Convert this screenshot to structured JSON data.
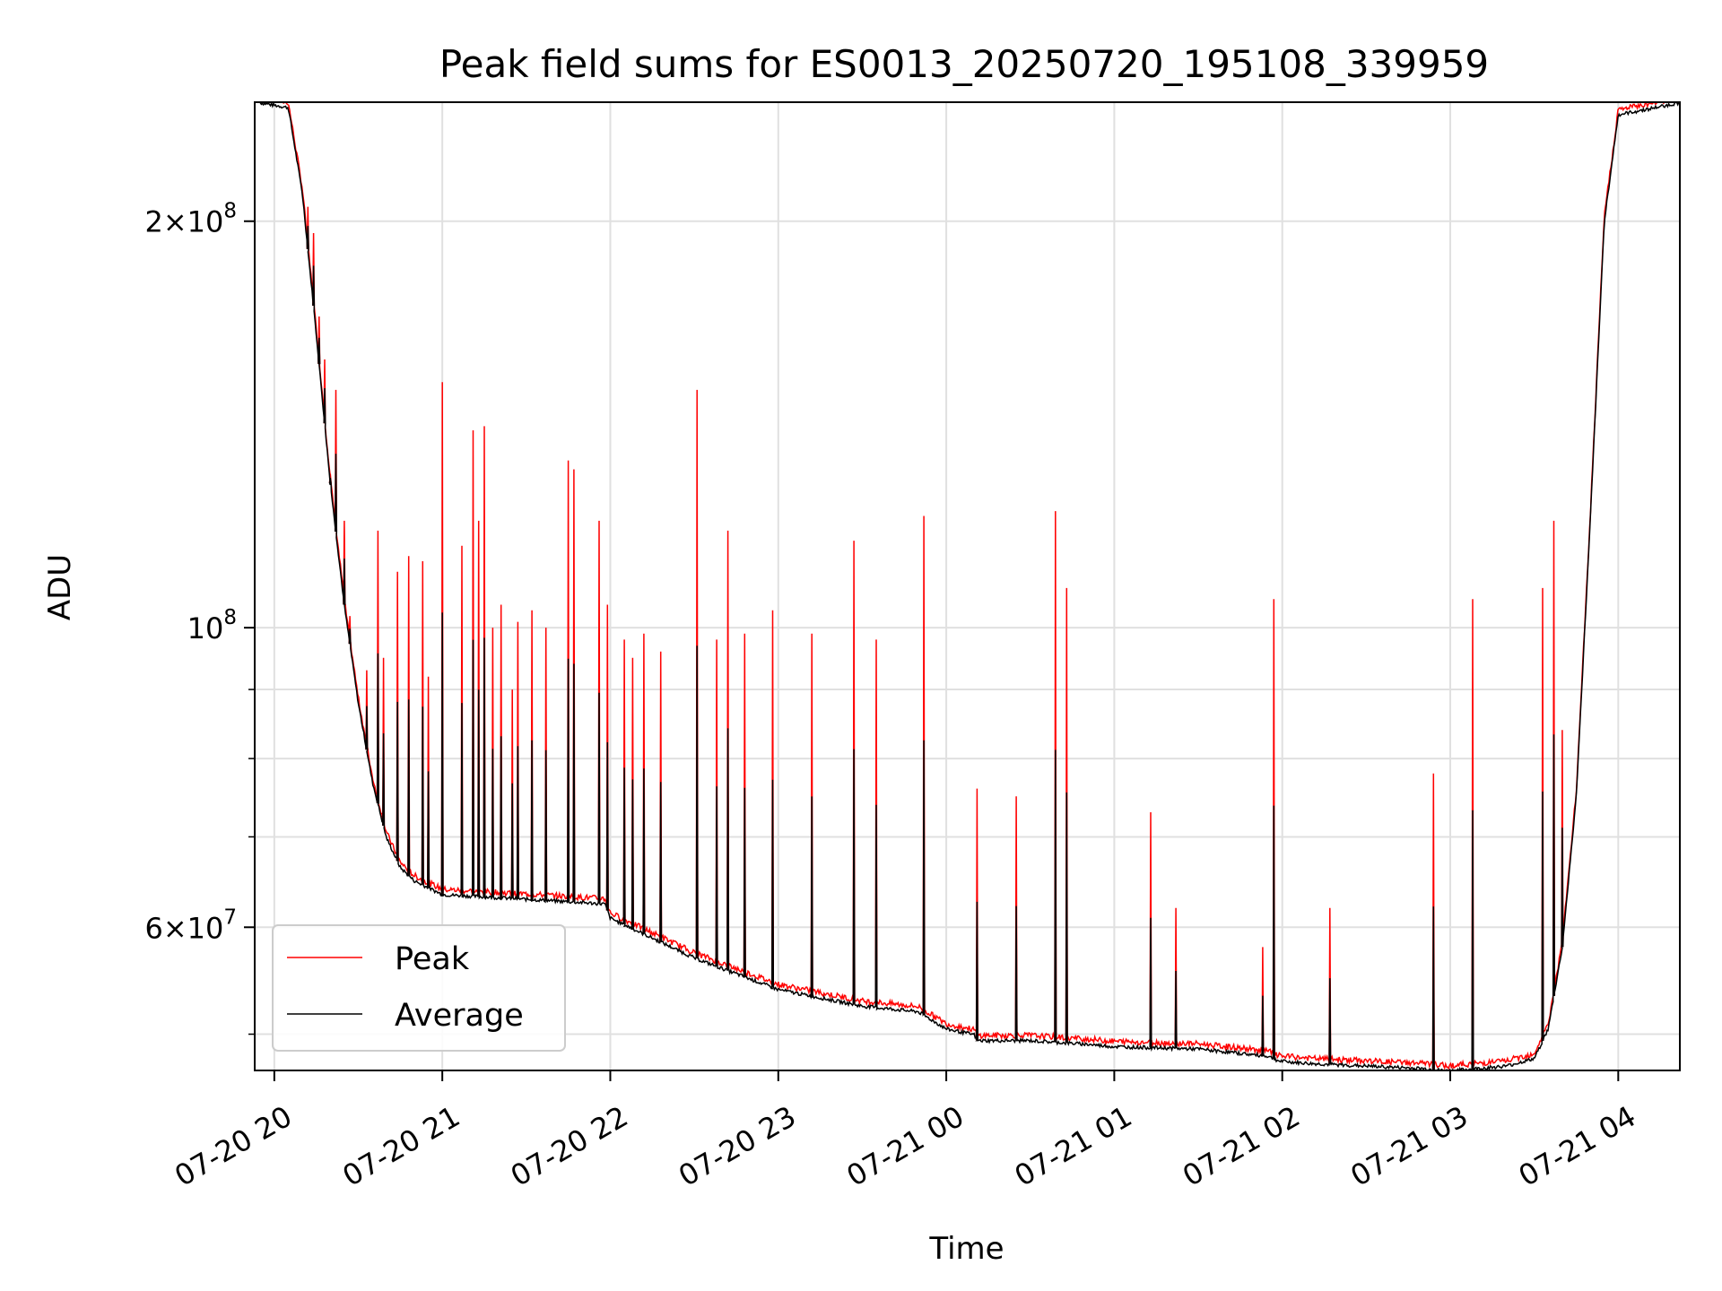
{
  "chart_data": {
    "type": "line",
    "title": "Peak field sums for ES0013_20250720_195108_339959",
    "xlabel": "Time",
    "ylabel": "ADU",
    "y_scale": "log",
    "ylim": [
      47000000,
      245000000
    ],
    "xlim": [
      "07-20 19:53",
      "07-21 04:22"
    ],
    "grid": true,
    "legend_position": "lower-left",
    "x_ticks": [
      "07-20 20",
      "07-20 21",
      "07-20 22",
      "07-20 23",
      "07-21 00",
      "07-21 01",
      "07-21 02",
      "07-21 03",
      "07-21 04"
    ],
    "y_tick_labels": [
      {
        "value": 200000000,
        "mantissa": "2",
        "exponent": "8"
      },
      {
        "value": 100000000,
        "mantissa": "",
        "exponent": "8"
      },
      {
        "value": 60000000,
        "mantissa": "6",
        "exponent": "7"
      }
    ],
    "y_minor_ticks": [
      70000000,
      80000000,
      90000000
    ],
    "baseline": {
      "x": [
        "07-20 19:55",
        "07-20 20:05",
        "07-20 20:10",
        "07-20 20:15",
        "07-20 20:20",
        "07-20 20:25",
        "07-20 20:30",
        "07-20 20:35",
        "07-20 20:40",
        "07-20 20:45",
        "07-20 20:50",
        "07-20 21:00",
        "07-20 21:30",
        "07-20 21:58",
        "07-20 22:00",
        "07-20 22:30",
        "07-20 23:00",
        "07-20 23:30",
        "07-20 23:50",
        "07-21 00:00",
        "07-21 00:10",
        "07-21 00:11",
        "07-21 00:30",
        "07-21 00:50",
        "07-21 01:00",
        "07-21 01:30",
        "07-21 01:55",
        "07-21 01:59",
        "07-21 02:10",
        "07-21 02:30",
        "07-21 02:50",
        "07-21 02:59",
        "07-21 03:10",
        "07-21 03:20",
        "07-21 03:30",
        "07-21 03:35",
        "07-21 03:40",
        "07-21 03:45",
        "07-21 03:50",
        "07-21 03:55",
        "07-21 04:00",
        "07-21 04:22"
      ],
      "y": [
        245000000,
        243000000,
        210000000,
        165000000,
        128000000,
        104000000,
        88000000,
        77000000,
        70000000,
        66500000,
        65000000,
        63500000,
        63000000,
        62500000,
        61000000,
        57000000,
        54000000,
        52500000,
        52000000,
        50500000,
        50000000,
        49500000,
        49500000,
        49200000,
        49000000,
        48800000,
        48200000,
        47800000,
        47600000,
        47400000,
        47200000,
        47000000,
        47200000,
        47400000,
        48000000,
        50500000,
        58000000,
        75000000,
        120000000,
        200000000,
        240000000,
        245000000
      ]
    },
    "spikes": {
      "x": [
        "07-20 20:12",
        "07-20 20:14",
        "07-20 20:16",
        "07-20 20:18",
        "07-20 20:20",
        "07-20 20:22",
        "07-20 20:25",
        "07-20 20:27",
        "07-20 20:33",
        "07-20 20:37",
        "07-20 20:39",
        "07-20 20:44",
        "07-20 20:48",
        "07-20 20:53",
        "07-20 20:55",
        "07-20 21:00",
        "07-20 21:07",
        "07-20 21:11",
        "07-20 21:13",
        "07-20 21:15",
        "07-20 21:18",
        "07-20 21:21",
        "07-20 21:25",
        "07-20 21:27",
        "07-20 21:32",
        "07-20 21:37",
        "07-20 21:45",
        "07-20 21:47",
        "07-20 21:56",
        "07-20 21:59",
        "07-20 22:05",
        "07-20 22:08",
        "07-20 22:12",
        "07-20 22:18",
        "07-20 22:31",
        "07-20 22:38",
        "07-20 22:42",
        "07-20 22:48",
        "07-20 22:58",
        "07-20 23:12",
        "07-20 23:27",
        "07-20 23:35",
        "07-20 23:52",
        "07-21 00:11",
        "07-21 00:25",
        "07-21 00:39",
        "07-21 00:43",
        "07-21 01:13",
        "07-21 01:22",
        "07-21 01:53",
        "07-21 01:57",
        "07-21 02:17",
        "07-21 02:54",
        "07-21 03:08",
        "07-21 03:33",
        "07-21 03:37",
        "07-21 03:40"
      ],
      "y": [
        205000000,
        196000000,
        170000000,
        158000000,
        130000000,
        150000000,
        120000000,
        102000000,
        93000000,
        118000000,
        95000000,
        110000000,
        113000000,
        112000000,
        92000000,
        152000000,
        115000000,
        140000000,
        120000000,
        141000000,
        100000000,
        104000000,
        90000000,
        101000000,
        103000000,
        100000000,
        133000000,
        131000000,
        120000000,
        104000000,
        98000000,
        95000000,
        99000000,
        96000000,
        150000000,
        98000000,
        118000000,
        99000000,
        103000000,
        99000000,
        116000000,
        98000000,
        121000000,
        76000000,
        75000000,
        122000000,
        107000000,
        73000000,
        62000000,
        58000000,
        105000000,
        62000000,
        78000000,
        105000000,
        107000000,
        120000000,
        84000000
      ]
    },
    "series": [
      {
        "name": "Peak",
        "color": "#ff0000"
      },
      {
        "name": "Average",
        "color": "#000000"
      }
    ]
  }
}
